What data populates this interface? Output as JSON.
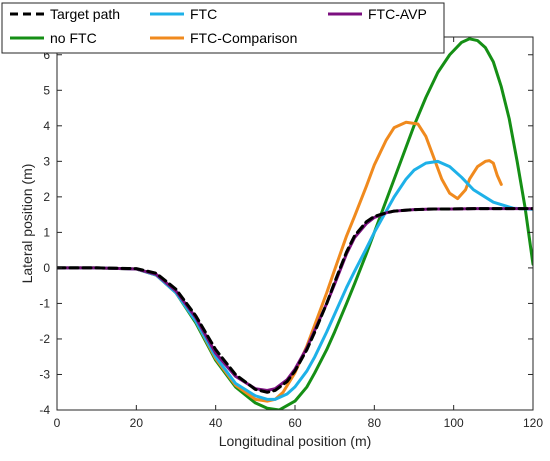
{
  "chart_data": {
    "type": "line",
    "title": "",
    "xlabel": "Longitudinal position (m)",
    "ylabel": "Lateral position (m)",
    "xlim": [
      0,
      120
    ],
    "ylim": [
      -4,
      6.5
    ],
    "xticks": [
      0,
      20,
      40,
      60,
      80,
      100,
      120
    ],
    "yticks": [
      -4,
      -3,
      -2,
      -1,
      0,
      1,
      2,
      3,
      4,
      5,
      6
    ],
    "grid": false,
    "legend_position": "top-left, outside plot box, 3 columns",
    "series": [
      {
        "name": "Target path",
        "color": "#000000",
        "dash": "dashed",
        "x": [
          0,
          10,
          20,
          25,
          30,
          35,
          40,
          45,
          50,
          53,
          55,
          58,
          60,
          63,
          65,
          68,
          70,
          73,
          75,
          78,
          80,
          83,
          85,
          90,
          95,
          100,
          105,
          110,
          115,
          120
        ],
        "y": [
          0,
          0,
          -0.02,
          -0.15,
          -0.6,
          -1.35,
          -2.3,
          -3.0,
          -3.42,
          -3.5,
          -3.45,
          -3.2,
          -2.9,
          -2.3,
          -1.8,
          -1.0,
          -0.4,
          0.45,
          0.9,
          1.3,
          1.45,
          1.55,
          1.6,
          1.64,
          1.66,
          1.66,
          1.67,
          1.67,
          1.67,
          1.67
        ]
      },
      {
        "name": "FTC",
        "color": "#1eb1e8",
        "dash": "solid",
        "x": [
          0,
          10,
          20,
          25,
          30,
          35,
          40,
          45,
          50,
          53,
          55,
          58,
          60,
          63,
          65,
          68,
          70,
          73,
          75,
          78,
          80,
          83,
          85,
          88,
          90,
          93,
          96,
          99,
          102,
          105,
          110,
          115,
          120
        ],
        "y": [
          0,
          0,
          -0.03,
          -0.2,
          -0.7,
          -1.5,
          -2.5,
          -3.25,
          -3.6,
          -3.7,
          -3.7,
          -3.55,
          -3.35,
          -2.9,
          -2.5,
          -1.8,
          -1.3,
          -0.55,
          -0.1,
          0.55,
          1.0,
          1.6,
          2.0,
          2.5,
          2.75,
          2.95,
          3.0,
          2.85,
          2.55,
          2.2,
          1.85,
          1.68,
          1.65
        ]
      },
      {
        "name": "FTC-AVP",
        "color": "#7b0f7f",
        "dash": "solid",
        "x": [
          0,
          10,
          20,
          25,
          30,
          35,
          40,
          45,
          50,
          53,
          55,
          58,
          60,
          63,
          65,
          68,
          70,
          73,
          75,
          78,
          80,
          83,
          85,
          90,
          95,
          100,
          105,
          110,
          115,
          120
        ],
        "y": [
          0,
          0,
          -0.03,
          -0.18,
          -0.65,
          -1.4,
          -2.4,
          -3.05,
          -3.4,
          -3.45,
          -3.4,
          -3.15,
          -2.85,
          -2.25,
          -1.75,
          -1.0,
          -0.45,
          0.4,
          0.85,
          1.25,
          1.42,
          1.55,
          1.6,
          1.64,
          1.66,
          1.66,
          1.67,
          1.67,
          1.67,
          1.67
        ]
      },
      {
        "name": "no FTC",
        "color": "#158f15",
        "dash": "solid",
        "x": [
          0,
          10,
          20,
          25,
          30,
          35,
          40,
          45,
          50,
          53,
          56,
          60,
          63,
          65,
          68,
          70,
          73,
          75,
          78,
          80,
          83,
          85,
          88,
          90,
          93,
          96,
          99,
          102,
          104,
          106,
          108,
          110,
          112,
          114,
          116,
          118,
          120
        ],
        "y": [
          0,
          0,
          -0.03,
          -0.2,
          -0.7,
          -1.55,
          -2.6,
          -3.35,
          -3.8,
          -3.95,
          -4.0,
          -3.75,
          -3.35,
          -2.95,
          -2.3,
          -1.8,
          -1.0,
          -0.45,
          0.4,
          1.0,
          1.9,
          2.5,
          3.4,
          4.0,
          4.8,
          5.5,
          6.0,
          6.35,
          6.45,
          6.4,
          6.2,
          5.8,
          5.1,
          4.2,
          3.0,
          1.7,
          0.1
        ]
      },
      {
        "name": "FTC-Comparison",
        "color": "#f08a1e",
        "dash": "solid",
        "x": [
          0,
          10,
          20,
          25,
          30,
          35,
          40,
          45,
          50,
          53,
          55,
          57,
          60,
          63,
          65,
          68,
          70,
          73,
          75,
          78,
          80,
          83,
          85,
          88,
          91,
          93,
          95,
          97,
          99,
          101,
          103,
          104,
          106,
          108,
          109,
          110,
          111,
          112
        ],
        "y": [
          0,
          0,
          -0.03,
          -0.2,
          -0.7,
          -1.5,
          -2.55,
          -3.3,
          -3.7,
          -3.75,
          -3.7,
          -3.5,
          -2.95,
          -2.2,
          -1.6,
          -0.7,
          -0.05,
          0.9,
          1.45,
          2.3,
          2.9,
          3.6,
          3.95,
          4.1,
          4.05,
          3.7,
          3.1,
          2.5,
          2.1,
          1.95,
          2.2,
          2.5,
          2.85,
          3.0,
          3.02,
          2.95,
          2.6,
          2.35
        ]
      }
    ]
  }
}
